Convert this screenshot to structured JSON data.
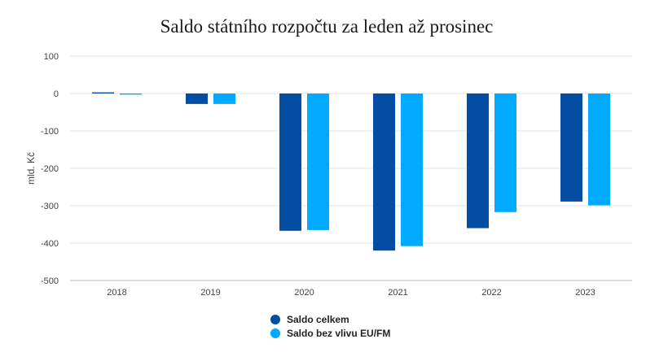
{
  "chart_data": {
    "type": "bar",
    "title": "Saldo státního rozpočtu za leden až prosinec",
    "xlabel": "",
    "ylabel": "mld. Kč",
    "ylim": [
      -500,
      100
    ],
    "yticks": [
      100,
      0,
      -100,
      -200,
      -300,
      -400,
      -500
    ],
    "grid": true,
    "legend_position": "bottom",
    "categories": [
      "2018",
      "2019",
      "2020",
      "2021",
      "2022",
      "2023"
    ],
    "series": [
      {
        "name": "Saldo celkem",
        "color": "#034ea2",
        "values": [
          3,
          -28,
          -367,
          -420,
          -360,
          -289
        ]
      },
      {
        "name": "Saldo bez vlivu EU/FM",
        "color": "#00aaff",
        "values": [
          -3,
          -28,
          -365,
          -408,
          -317,
          -299
        ]
      }
    ]
  }
}
